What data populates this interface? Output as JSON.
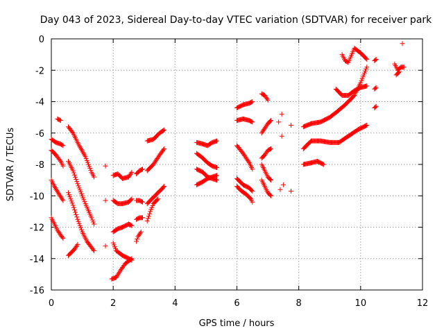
{
  "chart_data": {
    "type": "scatter",
    "title": "Day 043 of 2023, Sidereal Day-to-day VTEC variation (SDTVAR) for receiver park",
    "xlabel": "GPS time / hours",
    "ylabel": "SDTVAR / TECUs",
    "xlim": [
      0,
      12
    ],
    "ylim": [
      -16,
      0
    ],
    "xticks": [
      "0",
      "2",
      "4",
      "6",
      "8",
      "10",
      "12"
    ],
    "yticks": [
      "0",
      "-2",
      "-4",
      "-6",
      "-8",
      "-10",
      "-12",
      "-14",
      "-16"
    ],
    "grid": true,
    "marker": "+",
    "color": "#ff0000",
    "segments": [
      {
        "x": [
          0.0,
          0.15,
          0.3,
          0.38
        ],
        "y": [
          -6.4,
          -6.6,
          -6.7,
          -6.8
        ]
      },
      {
        "x": [
          0.2,
          0.3
        ],
        "y": [
          -5.1,
          -5.2
        ]
      },
      {
        "x": [
          0.0,
          0.15,
          0.3,
          0.38
        ],
        "y": [
          -7.1,
          -7.4,
          -7.8,
          -8.1
        ]
      },
      {
        "x": [
          0.0,
          0.1,
          0.25,
          0.38
        ],
        "y": [
          -9.0,
          -9.4,
          -9.9,
          -10.3
        ]
      },
      {
        "x": [
          0.0,
          0.1,
          0.2,
          0.3,
          0.38
        ],
        "y": [
          -11.4,
          -11.8,
          -12.2,
          -12.5,
          -12.7
        ]
      },
      {
        "x": [
          0.55,
          0.7,
          0.9,
          1.1,
          1.3,
          1.38
        ],
        "y": [
          -5.6,
          -6.0,
          -6.8,
          -7.5,
          -8.5,
          -8.8
        ]
      },
      {
        "x": [
          0.55,
          0.7,
          0.9,
          1.1,
          1.3,
          1.38
        ],
        "y": [
          -7.8,
          -8.4,
          -9.5,
          -10.5,
          -11.4,
          -11.8
        ]
      },
      {
        "x": [
          0.55,
          0.7,
          0.85,
          1.0,
          1.15,
          1.3,
          1.38
        ],
        "y": [
          -9.8,
          -10.6,
          -11.5,
          -12.3,
          -12.9,
          -13.3,
          -13.5
        ]
      },
      {
        "x": [
          0.55,
          0.65,
          0.75,
          0.85
        ],
        "y": [
          -13.8,
          -13.6,
          -13.4,
          -13.1
        ]
      },
      {
        "x": [
          1.75
        ],
        "y": [
          -8.1
        ]
      },
      {
        "x": [
          1.75
        ],
        "y": [
          -10.3
        ]
      },
      {
        "x": [
          1.75
        ],
        "y": [
          -13.2
        ]
      },
      {
        "x": [
          2.0,
          2.15,
          2.3,
          2.5,
          2.6
        ],
        "y": [
          -8.7,
          -8.6,
          -8.9,
          -8.8,
          -8.5
        ]
      },
      {
        "x": [
          2.0,
          2.15,
          2.3,
          2.5,
          2.6
        ],
        "y": [
          -10.3,
          -10.5,
          -10.5,
          -10.4,
          -10.2
        ]
      },
      {
        "x": [
          2.0,
          2.15,
          2.3,
          2.5,
          2.6
        ],
        "y": [
          -12.3,
          -12.1,
          -12.0,
          -11.8,
          -11.9
        ]
      },
      {
        "x": [
          2.0,
          2.1,
          2.3,
          2.5,
          2.6
        ],
        "y": [
          -13.0,
          -13.5,
          -13.8,
          -14.0,
          -14.1
        ]
      },
      {
        "x": [
          1.95,
          2.1,
          2.25,
          2.4,
          2.6
        ],
        "y": [
          -15.3,
          -15.2,
          -14.7,
          -14.3,
          -14.0
        ]
      },
      {
        "x": [
          2.75,
          2.85,
          2.95
        ],
        "y": [
          -8.6,
          -8.4,
          -8.3
        ]
      },
      {
        "x": [
          2.75,
          2.85,
          2.95
        ],
        "y": [
          -10.3,
          -10.3,
          -10.4
        ]
      },
      {
        "x": [
          2.75,
          2.85,
          2.95
        ],
        "y": [
          -11.5,
          -11.4,
          -11.4
        ]
      },
      {
        "x": [
          2.75,
          2.8,
          2.9
        ],
        "y": [
          -12.9,
          -12.6,
          -12.3
        ]
      },
      {
        "x": [
          3.1,
          3.3,
          3.5,
          3.65
        ],
        "y": [
          -6.5,
          -6.4,
          -6.0,
          -5.8
        ]
      },
      {
        "x": [
          3.1,
          3.3,
          3.5,
          3.65
        ],
        "y": [
          -8.4,
          -8.0,
          -7.4,
          -7.0
        ]
      },
      {
        "x": [
          3.1,
          3.3,
          3.5,
          3.65
        ],
        "y": [
          -10.5,
          -10.1,
          -9.7,
          -9.4
        ]
      },
      {
        "x": [
          3.1,
          3.2,
          3.3,
          3.45
        ],
        "y": [
          -11.6,
          -11.0,
          -10.5,
          -10.2
        ]
      },
      {
        "x": [
          4.7,
          4.9,
          5.05,
          5.2,
          5.35
        ],
        "y": [
          -6.6,
          -6.7,
          -6.8,
          -6.6,
          -6.5
        ]
      },
      {
        "x": [
          4.7,
          4.9,
          5.05,
          5.2,
          5.35
        ],
        "y": [
          -7.3,
          -7.6,
          -7.9,
          -8.1,
          -8.2
        ]
      },
      {
        "x": [
          4.7,
          4.9,
          5.05,
          5.2,
          5.35
        ],
        "y": [
          -8.3,
          -8.5,
          -8.8,
          -8.9,
          -9.0
        ]
      },
      {
        "x": [
          4.7,
          4.9,
          5.05,
          5.2,
          5.35
        ],
        "y": [
          -9.3,
          -9.1,
          -8.9,
          -8.8,
          -8.7
        ]
      },
      {
        "x": [
          6.0,
          6.2,
          6.4,
          6.5
        ],
        "y": [
          -4.4,
          -4.2,
          -4.1,
          -4.0
        ]
      },
      {
        "x": [
          6.0,
          6.2,
          6.4,
          6.5
        ],
        "y": [
          -5.2,
          -5.1,
          -5.2,
          -5.3
        ]
      },
      {
        "x": [
          6.0,
          6.2,
          6.4,
          6.5
        ],
        "y": [
          -6.8,
          -7.3,
          -7.9,
          -8.3
        ]
      },
      {
        "x": [
          6.0,
          6.2,
          6.4,
          6.5
        ],
        "y": [
          -8.9,
          -9.3,
          -9.5,
          -9.7
        ]
      },
      {
        "x": [
          6.0,
          6.15,
          6.3,
          6.45,
          6.5
        ],
        "y": [
          -9.4,
          -9.7,
          -9.9,
          -10.2,
          -10.4
        ]
      },
      {
        "x": [
          6.8,
          6.9,
          7.0
        ],
        "y": [
          -3.5,
          -3.6,
          -3.9
        ]
      },
      {
        "x": [
          6.8,
          6.9,
          7.0,
          7.1
        ],
        "y": [
          -6.0,
          -5.7,
          -5.4,
          -5.2
        ]
      },
      {
        "x": [
          6.8,
          6.9,
          7.0,
          7.1
        ],
        "y": [
          -7.6,
          -7.4,
          -7.1,
          -7.0
        ]
      },
      {
        "x": [
          6.8,
          6.9,
          7.0,
          7.1
        ],
        "y": [
          -8.0,
          -8.4,
          -8.8,
          -9.0
        ]
      },
      {
        "x": [
          6.8,
          6.9,
          7.0,
          7.1
        ],
        "y": [
          -9.0,
          -9.4,
          -9.8,
          -10.0
        ]
      },
      {
        "x": [
          7.35
        ],
        "y": [
          -5.3
        ]
      },
      {
        "x": [
          7.45
        ],
        "y": [
          -4.8
        ]
      },
      {
        "x": [
          7.45
        ],
        "y": [
          -6.2
        ]
      },
      {
        "x": [
          7.4
        ],
        "y": [
          -9.6
        ]
      },
      {
        "x": [
          7.5
        ],
        "y": [
          -9.3
        ]
      },
      {
        "x": [
          7.75
        ],
        "y": [
          -5.5
        ]
      },
      {
        "x": [
          7.75
        ],
        "y": [
          -9.7
        ]
      },
      {
        "x": [
          8.15,
          8.4,
          8.7,
          9.0,
          9.2,
          9.5,
          9.8,
          10.0,
          10.2
        ],
        "y": [
          -5.6,
          -5.4,
          -5.3,
          -5.0,
          -4.7,
          -4.2,
          -3.6,
          -2.8,
          -1.8
        ]
      },
      {
        "x": [
          8.15,
          8.4,
          8.7,
          9.0,
          9.3,
          9.6,
          9.9,
          10.1,
          10.2
        ],
        "y": [
          -7.0,
          -6.5,
          -6.5,
          -6.6,
          -6.6,
          -6.2,
          -5.8,
          -5.6,
          -5.5
        ]
      },
      {
        "x": [
          8.15,
          8.4,
          8.6,
          8.8
        ],
        "y": [
          -8.0,
          -7.9,
          -7.8,
          -8.0
        ]
      },
      {
        "x": [
          9.2,
          9.4,
          9.6,
          9.8,
          10.0,
          10.2
        ],
        "y": [
          -3.2,
          -3.6,
          -3.6,
          -3.3,
          -3.1,
          -3.0
        ]
      },
      {
        "x": [
          9.4,
          9.5,
          9.6,
          9.8,
          10.0,
          10.2
        ],
        "y": [
          -1.0,
          -1.4,
          -1.5,
          -0.6,
          -0.9,
          -1.3
        ]
      },
      {
        "x": [
          10.45,
          10.5
        ],
        "y": [
          -1.4,
          -1.3
        ]
      },
      {
        "x": [
          10.45,
          10.5
        ],
        "y": [
          -3.2,
          -3.1
        ]
      },
      {
        "x": [
          10.45,
          10.5
        ],
        "y": [
          -4.4,
          -4.3
        ]
      },
      {
        "x": [
          11.1,
          11.2,
          11.3,
          11.4
        ],
        "y": [
          -1.6,
          -2.0,
          -1.8,
          -1.8
        ]
      },
      {
        "x": [
          11.15,
          11.25
        ],
        "y": [
          -2.3,
          -2.1
        ]
      },
      {
        "x": [
          11.35
        ],
        "y": [
          -0.3
        ]
      }
    ]
  }
}
